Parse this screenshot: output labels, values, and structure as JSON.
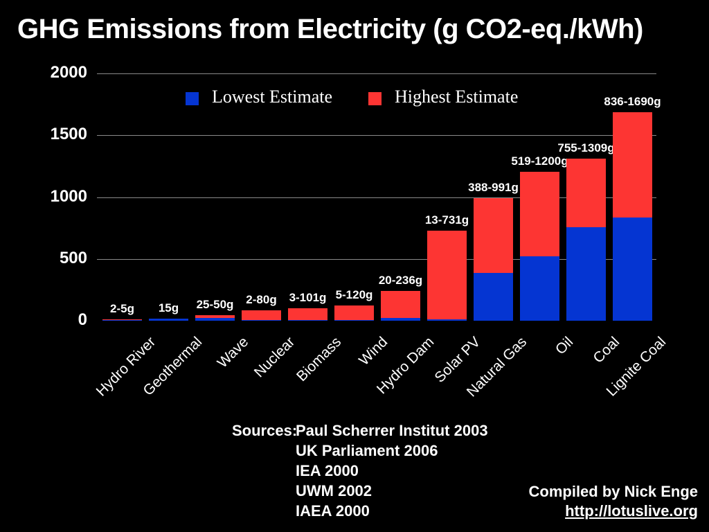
{
  "title": "GHG Emissions from Electricity (g CO2-eq./kWh)",
  "legend": {
    "lowest_label": "Lowest Estimate",
    "highest_label": "Highest Estimate"
  },
  "colors": {
    "lowest": "#0535d2",
    "highest": "#fd3533",
    "gridline": "#8a8a8a",
    "background": "#000000",
    "text": "#ffffff"
  },
  "chart_data": {
    "type": "bar",
    "stacked": true,
    "title": "GHG Emissions from Electricity (g CO2-eq./kWh)",
    "unit": "g CO2-eq./kWh",
    "categories": [
      "Hydro River",
      "Geothermal",
      "Wave",
      "Nuclear",
      "Biomass",
      "Wind",
      "Hydro Dam",
      "Solar PV",
      "Natural Gas",
      "Oil",
      "Coal",
      "Lignite Coal"
    ],
    "series": [
      {
        "name": "Lowest Estimate",
        "color": "#0535d2",
        "values": [
          2,
          15,
          25,
          2,
          3,
          5,
          20,
          13,
          388,
          519,
          755,
          836
        ]
      },
      {
        "name": "Highest Estimate",
        "color": "#fd3533",
        "values": [
          5,
          15,
          50,
          80,
          101,
          120,
          236,
          731,
          991,
          1200,
          1309,
          1690
        ]
      }
    ],
    "bar_labels": [
      "2-5g",
      "15g",
      "25-50g",
      "2-80g",
      "3-101g",
      "5-120g",
      "20-236g",
      "13-731g",
      "388-991g",
      "519-1200g",
      "755-1309g",
      "836-1690g"
    ],
    "ylim": [
      0,
      2000
    ],
    "yticks": [
      0,
      500,
      1000,
      1500,
      2000
    ],
    "grid": true,
    "legend_position": "top"
  },
  "sources": {
    "label": "Sources:",
    "items": [
      "Paul Scherrer Institut 2003",
      "UK Parliament 2006",
      "IEA 2000",
      "UWM 2002",
      "IAEA 2000"
    ]
  },
  "credit": {
    "compiled_by": "Compiled by Nick Enge",
    "link": "http://lotuslive.org"
  }
}
